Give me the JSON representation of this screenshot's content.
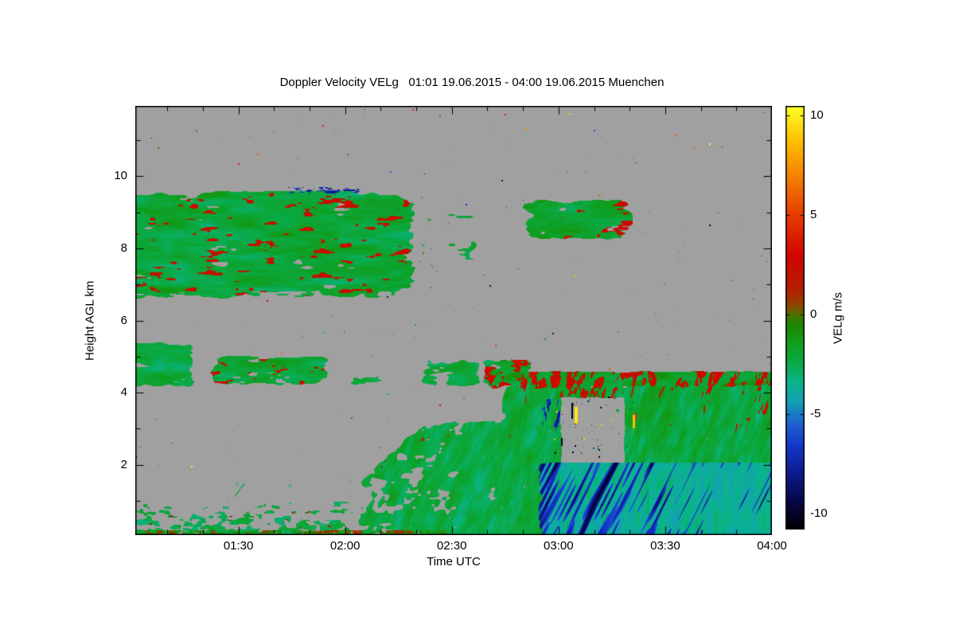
{
  "chart_data": {
    "type": "heatmap",
    "title": "Doppler Velocity VELg   01:01 19.06.2015 - 04:00 19.06.2015 Muenchen",
    "xlabel": "Time UTC",
    "ylabel": "Height AGL km",
    "colorbar_label": "VELg m/s",
    "instrument_site": "Muenchen",
    "time_span_utc": [
      "01:01 19.06.2015",
      "04:00 19.06.2015"
    ],
    "x_range_hours": [
      1.0167,
      4.0
    ],
    "y_range_km": [
      0.05,
      11.95
    ],
    "value_range": [
      -10.8,
      10.5
    ],
    "grid": false,
    "legend_position": "right-colorbar",
    "x_ticks": [
      {
        "t": 1.5,
        "label": "01:30"
      },
      {
        "t": 2.0,
        "label": "02:00"
      },
      {
        "t": 2.5,
        "label": "02:30"
      },
      {
        "t": 3.0,
        "label": "03:00"
      },
      {
        "t": 3.5,
        "label": "03:30"
      },
      {
        "t": 4.0,
        "label": "04:00"
      }
    ],
    "y_ticks": [
      {
        "km": 2,
        "label": "2"
      },
      {
        "km": 4,
        "label": "4"
      },
      {
        "km": 6,
        "label": "6"
      },
      {
        "km": 8,
        "label": "8"
      },
      {
        "km": 10,
        "label": "10"
      }
    ],
    "colorbar_ticks": [
      {
        "v": 10,
        "label": "10"
      },
      {
        "v": 5,
        "label": "5"
      },
      {
        "v": 0,
        "label": "0"
      },
      {
        "v": -5,
        "label": "-5"
      },
      {
        "v": -10,
        "label": "-10"
      }
    ],
    "nodata_color": "#a0a0a0",
    "colormap": [
      {
        "v": -10.8,
        "c": "#000000"
      },
      {
        "v": -9.4,
        "c": "#06074a"
      },
      {
        "v": -8.0,
        "c": "#0b1b8e"
      },
      {
        "v": -6.6,
        "c": "#1437c8"
      },
      {
        "v": -5.4,
        "c": "#1e64cd"
      },
      {
        "v": -4.4,
        "c": "#14a0b4"
      },
      {
        "v": -3.4,
        "c": "#0ab48c"
      },
      {
        "v": -2.4,
        "c": "#0aaa46"
      },
      {
        "v": -1.4,
        "c": "#0f9e1e"
      },
      {
        "v": -0.5,
        "c": "#1e8700"
      },
      {
        "v": 0.0,
        "c": "#4d7000"
      },
      {
        "v": 0.45,
        "c": "#8c4600"
      },
      {
        "v": 1.3,
        "c": "#b41e00"
      },
      {
        "v": 3.0,
        "c": "#d20500"
      },
      {
        "v": 5.0,
        "c": "#e63c00"
      },
      {
        "v": 7.0,
        "c": "#f58200"
      },
      {
        "v": 8.6,
        "c": "#fcb900"
      },
      {
        "v": 10.5,
        "c": "#ffff28"
      }
    ],
    "regions": [
      {
        "name": "upper-cloud-main",
        "seed": 1,
        "t": [
          1.0,
          2.36
        ],
        "h": [
          6.55,
          9.68
        ],
        "base": -2.1,
        "var": 1.25,
        "density": 0.8,
        "scale": [
          36,
          9
        ],
        "vscale": [
          46,
          10
        ],
        "edge": 0.1,
        "edges": [
          0,
          1,
          1,
          1
        ],
        "pos": {
          "amount": 0.24,
          "mode": "uniform",
          "value": 1.6,
          "spread": 2.4,
          "scale": [
            24,
            7
          ]
        }
      },
      {
        "name": "upper-cloud-tail",
        "seed": 2,
        "t": [
          2.36,
          2.66
        ],
        "h": [
          7.1,
          9.3
        ],
        "base": -2.0,
        "var": 1.1,
        "density": 0.38,
        "scale": [
          26,
          8
        ],
        "edge": 0.2,
        "edges": [
          0,
          1,
          1,
          1
        ],
        "pos": {
          "amount": 0.14,
          "mode": "uniform",
          "value": 1.5,
          "spread": 2.0,
          "scale": [
            20,
            7
          ]
        }
      },
      {
        "name": "upper-cloud-right",
        "seed": 3,
        "t": [
          2.81,
          3.37
        ],
        "h": [
          8.2,
          9.42
        ],
        "base": -1.9,
        "var": 1.1,
        "density": 0.8,
        "scale": [
          30,
          8
        ],
        "edge": 0.16,
        "edges": [
          1,
          1,
          1,
          1
        ],
        "pos": {
          "amount": 0.42,
          "mode": "right",
          "value": 1.8,
          "spread": 2.2,
          "scale": [
            18,
            7
          ]
        }
      },
      {
        "name": "mid-layer-far-left",
        "seed": 4,
        "t": [
          1.0,
          1.3
        ],
        "h": [
          4.1,
          5.45
        ],
        "base": -2.3,
        "var": 1.1,
        "density": 0.78,
        "scale": [
          26,
          9
        ],
        "edge": 0.14,
        "edges": [
          0,
          1,
          1,
          1
        ],
        "pos": {
          "amount": 0.16,
          "mode": "top",
          "topWidth": 0.4,
          "value": 1.5,
          "spread": 2.0,
          "scale": [
            18,
            6
          ]
        }
      },
      {
        "name": "mid-layer-left",
        "seed": 5,
        "t": [
          1.33,
          1.95
        ],
        "h": [
          4.15,
          5.08
        ],
        "base": -2.1,
        "var": 1.2,
        "density": 0.72,
        "scale": [
          30,
          8
        ],
        "edge": 0.16,
        "edges": [
          1,
          1,
          1,
          1
        ],
        "pos": {
          "amount": 0.3,
          "mode": "uniform",
          "value": 1.6,
          "spread": 2.2,
          "scale": [
            16,
            6
          ]
        }
      },
      {
        "name": "mid-layer-small",
        "seed": 6,
        "t": [
          1.99,
          2.2
        ],
        "h": [
          4.15,
          4.62
        ],
        "base": -2.3,
        "var": 1.0,
        "density": 0.55,
        "scale": [
          20,
          7
        ],
        "edge": 0.25,
        "edges": [
          1,
          1,
          1,
          1
        ],
        "pos": {
          "amount": 0.12,
          "mode": "uniform",
          "value": 1.5,
          "spread": 1.8,
          "scale": [
            14,
            6
          ]
        }
      },
      {
        "name": "mid-layer-center",
        "seed": 7,
        "t": [
          2.33,
          2.66
        ],
        "h": [
          4.1,
          5.0
        ],
        "base": -2.4,
        "var": 1.0,
        "density": 0.62,
        "scale": [
          24,
          8
        ],
        "edge": 0.2,
        "edges": [
          1,
          1,
          1,
          1
        ],
        "pos": {
          "amount": 0.18,
          "mode": "top",
          "topWidth": 0.5,
          "value": 1.5,
          "spread": 2.0,
          "scale": [
            14,
            6
          ]
        }
      },
      {
        "name": "mid-layer-right",
        "seed": 8,
        "t": [
          2.62,
          2.9
        ],
        "h": [
          4.05,
          5.0
        ],
        "base": -1.9,
        "var": 1.3,
        "density": 0.7,
        "scale": [
          18,
          8
        ],
        "edge": 0.18,
        "edges": [
          1,
          1,
          1,
          1
        ],
        "pos": {
          "amount": 0.42,
          "mode": "uniform",
          "value": 1.8,
          "spread": 2.4,
          "scale": [
            12,
            7
          ]
        }
      },
      {
        "name": "boundary-layer-left",
        "seed": 9,
        "t": [
          1.0,
          2.14
        ],
        "h": [
          0.0,
          1.1
        ],
        "base": -2.4,
        "var": 1.2,
        "density": 0.62,
        "scale": [
          14,
          6
        ],
        "edge": 0.12,
        "edges": [
          0,
          1,
          1,
          0
        ],
        "dfade": [
          0.3,
          1.0
        ],
        "pos": {
          "amount": 0.18,
          "mode": "uniform",
          "value": 1.4,
          "spread": 2.2,
          "scale": [
            9,
            5
          ]
        }
      },
      {
        "name": "fall-streak-wisps",
        "seed": 10,
        "t": [
          1.28,
          1.87
        ],
        "h": [
          0.55,
          1.8
        ],
        "base": -2.5,
        "var": 0.8,
        "density": 0.26,
        "scale": [
          9,
          28
        ],
        "covShear": 0.7,
        "edge": 0.22,
        "edges": [
          1,
          1,
          1,
          1
        ]
      },
      {
        "name": "precip-onset",
        "seed": 11,
        "t": [
          2.0,
          2.8
        ],
        "h": [
          0.0,
          3.3
        ],
        "top": {
          "from": 1.3,
          "to": 3.3,
          "ramp": 0.45
        },
        "base": -2.3,
        "var": 1.2,
        "density": 0.85,
        "dfadeU": [
          0.55,
          1.05
        ],
        "scale": [
          15,
          11
        ],
        "covShear": 0.4,
        "vscale": [
          9,
          26
        ],
        "valShear": 0.4,
        "edge": 0.1,
        "edges": [
          1,
          0,
          1,
          0
        ],
        "pos": {
          "amount": 0.3,
          "mode": "top",
          "topWidth": 0.35,
          "value": 1.6,
          "spread": 2.3,
          "scale": [
            6,
            18
          ],
          "shear": 0.3
        }
      },
      {
        "name": "precip-top-band",
        "seed": 12,
        "t": [
          2.7,
          4.03
        ],
        "h": [
          3.85,
          4.62
        ],
        "base": -1.7,
        "var": 1.3,
        "density": 0.87,
        "scale": [
          22,
          9
        ],
        "edge": 0.12,
        "edges": [
          1,
          0,
          1,
          1
        ],
        "pos": {
          "amount": 0.5,
          "mode": "uniform",
          "value": 1.7,
          "spread": 2.4,
          "scale": [
            6,
            12
          ],
          "shear": 0.2
        }
      },
      {
        "name": "precip-leading-column",
        "seed": 13,
        "t": [
          2.72,
          3.02
        ],
        "h": [
          0.0,
          4.25
        ],
        "base": -2.2,
        "var": 1.2,
        "density": 0.86,
        "scale": [
          13,
          17
        ],
        "vscale": [
          8,
          26
        ],
        "valShear": 0.3,
        "edge": 0.12,
        "edges": [
          1,
          1,
          1,
          0
        ],
        "pos": {
          "amount": 0.2,
          "mode": "top",
          "topWidth": 0.5,
          "value": 1.6,
          "spread": 2.2,
          "scale": [
            5,
            16
          ],
          "shear": 0.3
        }
      },
      {
        "name": "convective-dark-streaks",
        "seed": 14,
        "t": [
          2.9,
          3.02
        ],
        "h": [
          2.4,
          4.05
        ],
        "base": -2.0,
        "var": 1.0,
        "density": 0.5,
        "scale": [
          5,
          24
        ],
        "edge": 0.18,
        "edges": [
          1,
          1,
          1,
          1
        ],
        "neg": {
          "amount": 0.45,
          "value": -6.0,
          "spread": 4.3,
          "shear": 0.3,
          "scale": [
            3,
            40
          ]
        }
      },
      {
        "name": "precip-main-mass",
        "seed": 15,
        "t": [
          3.3,
          4.03
        ],
        "h": [
          0.0,
          4.25
        ],
        "base": -2.2,
        "var": 1.3,
        "density": 0.94,
        "scale": [
          16,
          13
        ],
        "vscale": [
          8,
          30
        ],
        "valShear": 0.35,
        "edge": 0.07,
        "edges": [
          1,
          0,
          1,
          0
        ],
        "pos": {
          "amount": 0.28,
          "mode": "top",
          "topWidth": 0.55,
          "value": 1.6,
          "spread": 2.2,
          "scale": [
            6,
            20
          ],
          "shear": 0.3
        }
      },
      {
        "name": "notch-wisps",
        "seed": 16,
        "t": [
          3.03,
          3.34
        ],
        "h": [
          3.25,
          3.8
        ],
        "base": -2.3,
        "var": 0.9,
        "density": 0.2,
        "scale": [
          16,
          5
        ],
        "edge": 0.2,
        "edges": [
          1,
          1,
          1,
          1
        ]
      },
      {
        "name": "downdraft-zone",
        "seed": 17,
        "t": [
          2.9,
          4.03
        ],
        "h": [
          0.0,
          2.08
        ],
        "base": -3.6,
        "var": 1.0,
        "density": 0.96,
        "scale": [
          24,
          15
        ],
        "vscale": [
          7,
          40
        ],
        "edge": 0.08,
        "edges": [
          1,
          0,
          1,
          0
        ],
        "neg": {
          "amount": 0.5,
          "value": -5.5,
          "spread": 4.6,
          "shear": 0.5,
          "scale": [
            3.5,
            55
          ],
          "fade": [
            1.1,
            0.15
          ]
        }
      },
      {
        "name": "surface-clutter",
        "seed": 18,
        "t": [
          1.0,
          2.6
        ],
        "h": [
          0.0,
          0.2
        ],
        "base": -0.5,
        "var": 3.2,
        "density": 0.55,
        "scale": [
          6,
          3
        ],
        "edge": 0.1,
        "edges": [
          0,
          1,
          0,
          0
        ]
      },
      {
        "name": "cloud-top-dark-dashes",
        "seed": 19,
        "t": [
          1.67,
          2.12
        ],
        "h": [
          9.55,
          9.7
        ],
        "base": -7.5,
        "var": 1.5,
        "density": 0.42,
        "scale": [
          7,
          2
        ],
        "edge": 0.15,
        "edges": [
          1,
          1,
          0,
          0
        ]
      },
      {
        "name": "alias-speckles",
        "seed": 20,
        "type": "speckle",
        "t": [
          2.98,
          3.35
        ],
        "h": [
          2.2,
          3.9
        ],
        "count": 70,
        "values": [
          -10.6,
          -9.8,
          -8.5,
          9.4,
          8.6,
          -2.0,
          2.2,
          -10.2
        ]
      }
    ],
    "dashes": [
      {
        "t": 3.075,
        "h0": 3.16,
        "h1": 3.6,
        "w": 4,
        "v": 9.8
      },
      {
        "t": 3.06,
        "h0": 3.3,
        "h1": 3.72,
        "w": 2,
        "v": -10.4
      },
      {
        "t": 3.347,
        "h0": 3.03,
        "h1": 3.38,
        "w": 3,
        "v": 8.8
      },
      {
        "t": 3.36,
        "h0": 3.25,
        "h1": 3.42,
        "w": 2,
        "v": 4.5
      },
      {
        "t": 3.01,
        "h0": 2.55,
        "h1": 2.75,
        "w": 2,
        "v": -10.2
      }
    ],
    "speckles": {
      "count": 240,
      "seed": 99
    }
  }
}
